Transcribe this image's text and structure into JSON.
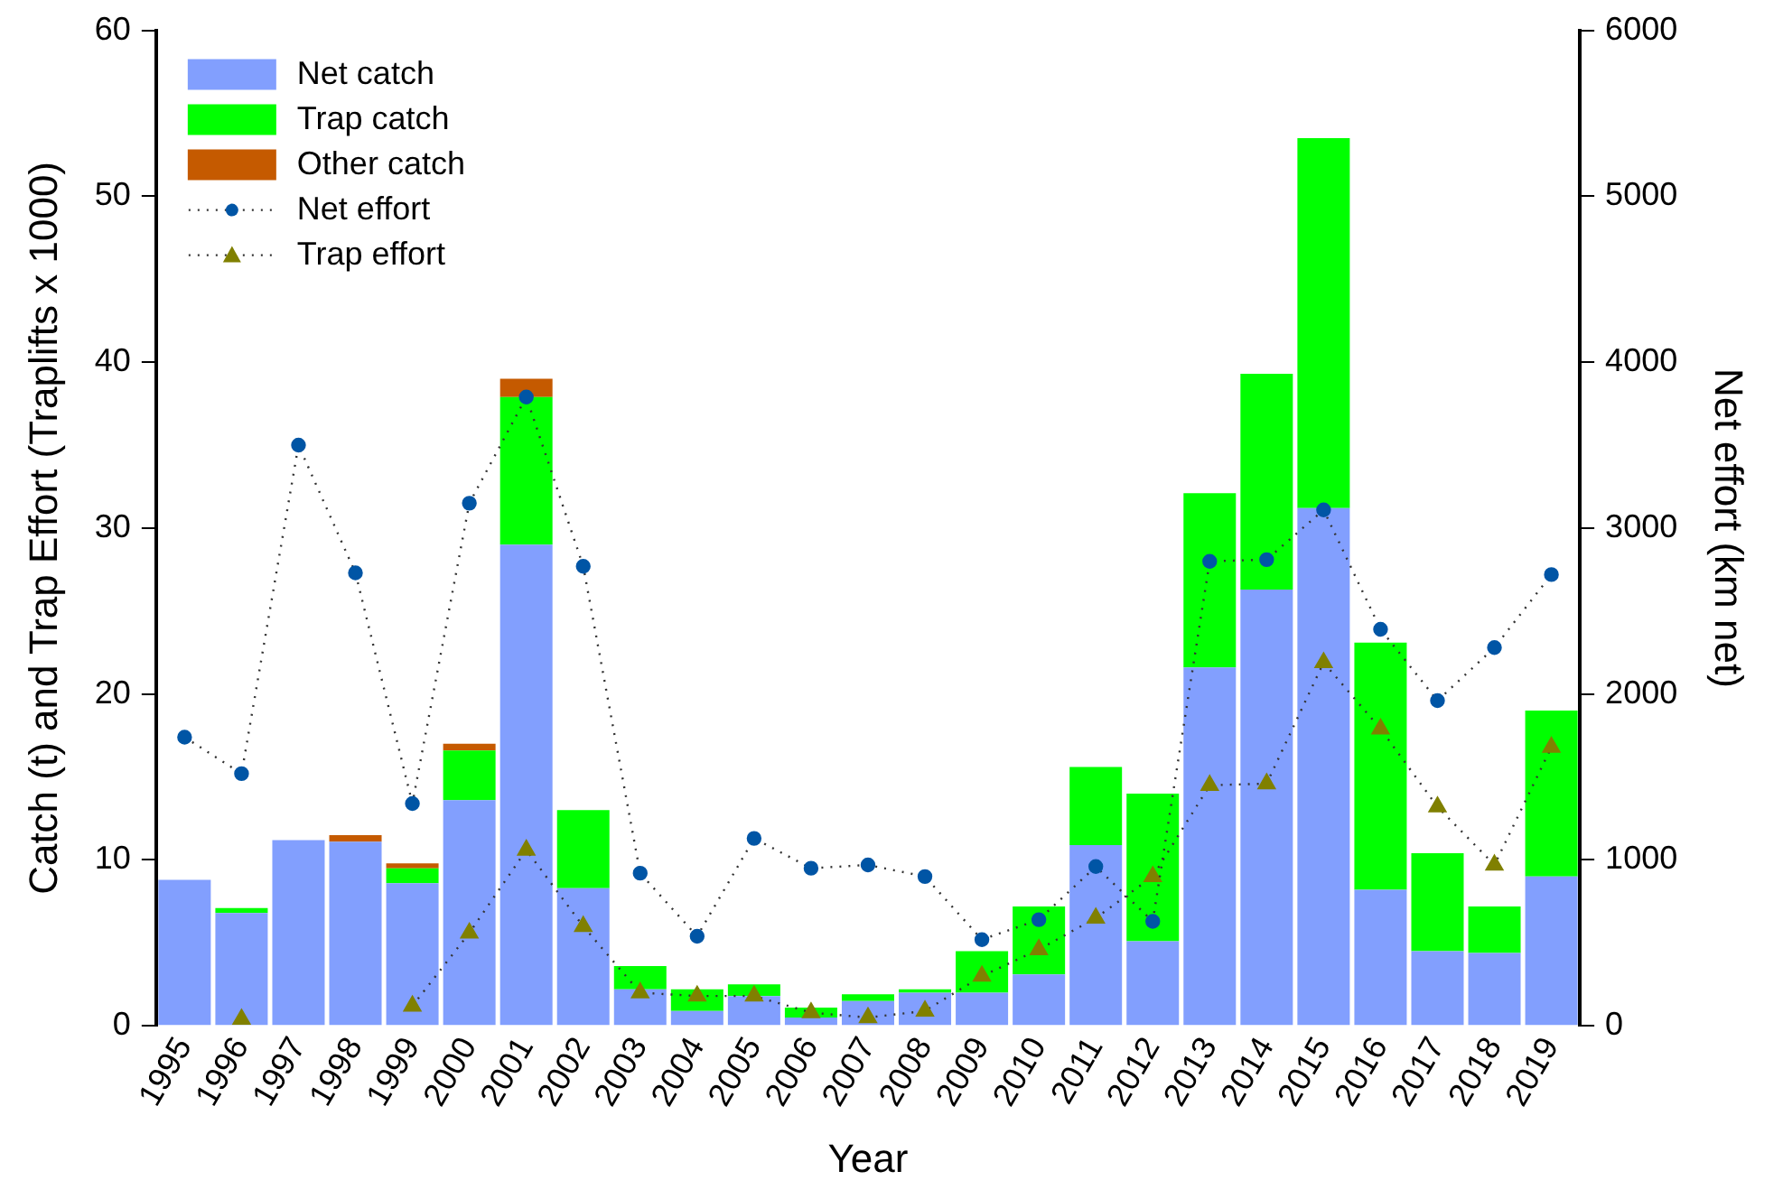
{
  "chart_data": {
    "type": "bar",
    "xlabel": "Year",
    "ylabel": "Catch (t) and Trap Effort (Traplifts x 1000)",
    "y2label": "Net effort (km net)",
    "categories": [
      "1995",
      "1996",
      "1997",
      "1998",
      "1999",
      "2000",
      "2001",
      "2002",
      "2003",
      "2004",
      "2005",
      "2006",
      "2007",
      "2008",
      "2009",
      "2010",
      "2011",
      "2012",
      "2013",
      "2014",
      "2015",
      "2016",
      "2017",
      "2018",
      "2019"
    ],
    "stacked": true,
    "ylim": [
      0,
      60
    ],
    "yticks": [
      0,
      10,
      20,
      30,
      40,
      50,
      60
    ],
    "y2lim": [
      0,
      6000
    ],
    "y2ticks": [
      0,
      1000,
      2000,
      3000,
      4000,
      5000,
      6000
    ],
    "grid": false,
    "legend": "top left",
    "series": [
      {
        "name": "Net catch",
        "color": "#829ffe",
        "values": [
          8.8,
          6.8,
          11.2,
          11.1,
          8.6,
          13.6,
          29.0,
          8.3,
          2.2,
          0.9,
          1.8,
          0.5,
          1.5,
          2.0,
          2.0,
          3.1,
          10.9,
          5.1,
          21.6,
          26.3,
          31.2,
          8.2,
          4.5,
          4.4,
          9.0
        ]
      },
      {
        "name": "Trap catch",
        "color": "#00ff00",
        "values": [
          null,
          0.3,
          null,
          null,
          0.9,
          3.0,
          8.9,
          4.7,
          1.4,
          1.3,
          0.7,
          0.6,
          0.4,
          0.2,
          2.5,
          4.1,
          4.7,
          8.9,
          10.5,
          13.0,
          22.3,
          14.9,
          5.9,
          2.8,
          10.0
        ]
      },
      {
        "name": "Other catch",
        "color": "#c55a00",
        "values": [
          null,
          null,
          null,
          0.4,
          0.3,
          0.4,
          1.1,
          null,
          null,
          null,
          null,
          null,
          null,
          null,
          null,
          null,
          null,
          null,
          null,
          null,
          null,
          null,
          null,
          null,
          null
        ]
      },
      {
        "name": "Net effort",
        "type": "line",
        "axis": "y2",
        "color": "#0055a5",
        "marker": "circle",
        "line_style": "dotted",
        "values": [
          1740,
          1520,
          3500,
          2730,
          1340,
          3150,
          3790,
          2770,
          920,
          540,
          1130,
          950,
          970,
          900,
          520,
          640,
          960,
          630,
          2800,
          2810,
          3110,
          2390,
          1960,
          2280,
          2720
        ]
      },
      {
        "name": "Trap effort",
        "type": "line",
        "color": "#808000",
        "marker": "triangle",
        "line_style": "dotted",
        "values": [
          null,
          0.4,
          null,
          null,
          1.2,
          5.6,
          10.6,
          6.0,
          2.0,
          1.8,
          1.8,
          0.8,
          0.5,
          0.9,
          3.0,
          4.6,
          6.5,
          9.0,
          14.5,
          14.6,
          21.9,
          17.9,
          13.2,
          9.7,
          16.8
        ]
      }
    ]
  }
}
